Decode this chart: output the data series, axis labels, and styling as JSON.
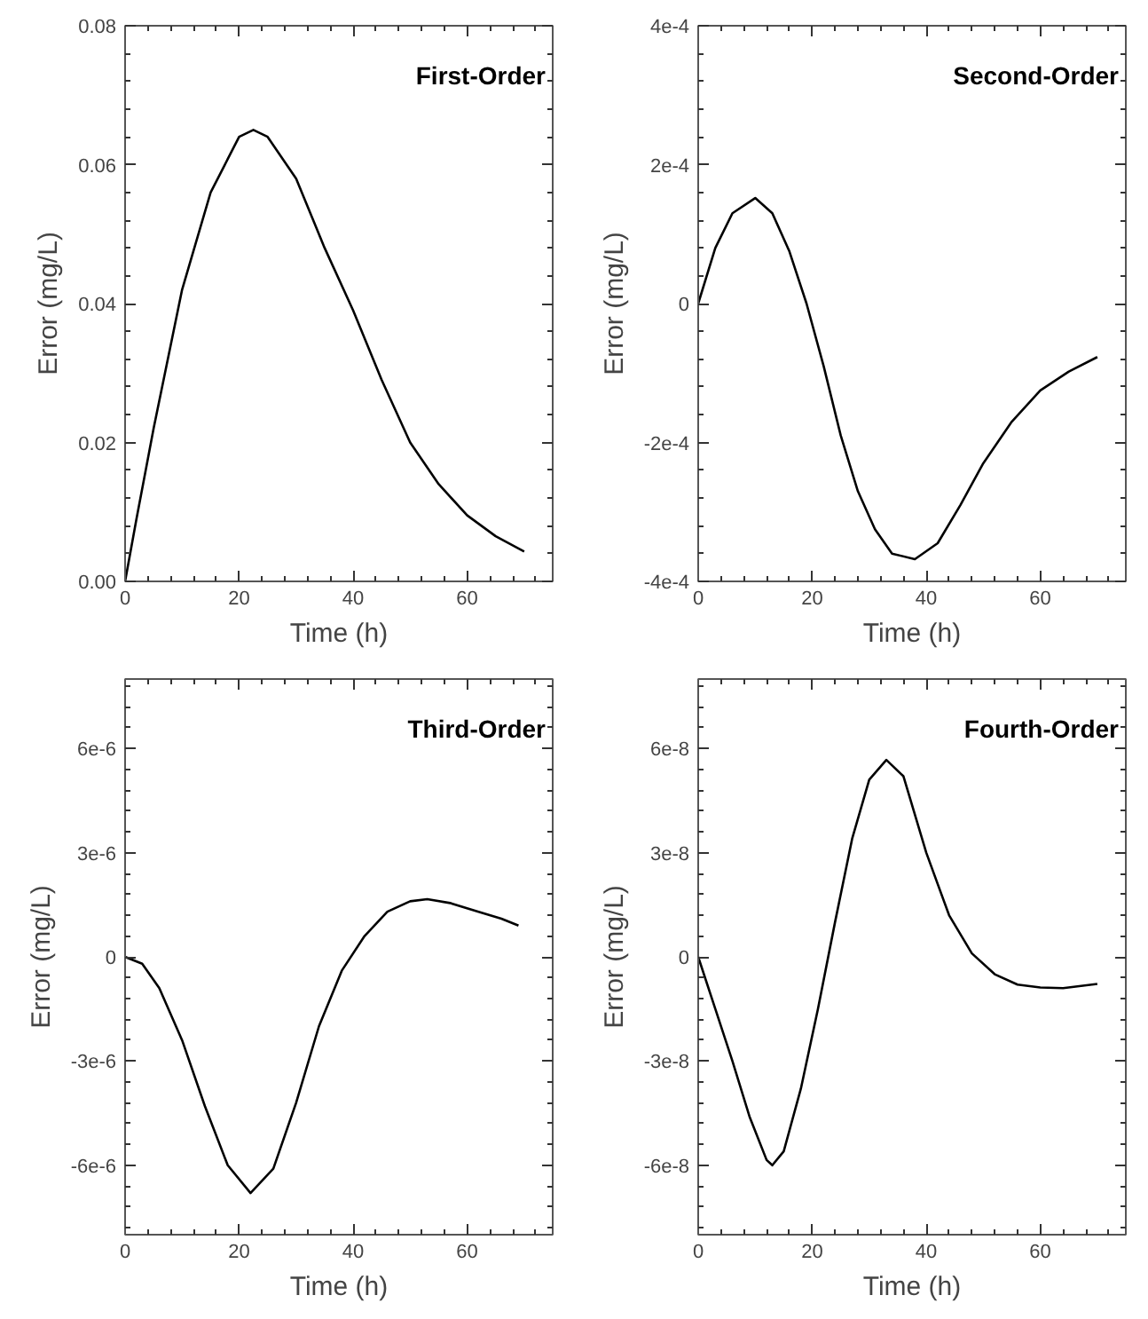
{
  "chart_data": [
    {
      "type": "line",
      "annotations": [
        "First-Order"
      ],
      "xlabel": "Time (h)",
      "ylabel": "Error (mg/L)",
      "xlim": [
        0,
        75
      ],
      "xticks": [
        0,
        20,
        40,
        60
      ],
      "ylim": [
        0,
        0.08
      ],
      "yticks": [
        {
          "value": 0,
          "label": "0.00"
        },
        0.02,
        0.04,
        0.06,
        0.08
      ],
      "grid": false,
      "marker": "none",
      "line_style": "solid",
      "series": [
        {
          "color": "#000000",
          "x": [
            0,
            2,
            5,
            10,
            15,
            20,
            22.5,
            25,
            30,
            35,
            40,
            45,
            50,
            55,
            60,
            65,
            70
          ],
          "values": [
            0,
            0.009,
            0.022,
            0.042,
            0.056,
            0.064,
            0.065,
            0.064,
            0.058,
            0.048,
            0.039,
            0.029,
            0.02,
            0.014,
            0.0095,
            0.0065,
            0.0043
          ]
        }
      ]
    },
    {
      "type": "line",
      "annotations": [
        "Second-Order"
      ],
      "xlabel": "Time (h)",
      "ylabel": "Error (mg/L)",
      "xlim": [
        0,
        75
      ],
      "xticks": [
        0,
        20,
        40,
        60
      ],
      "ylim": [
        -0.0004,
        0.0004
      ],
      "yticks": [
        {
          "value": -0.0004,
          "label": "-4e-4"
        },
        {
          "value": -0.0002,
          "label": "-2e-4"
        },
        {
          "value": 0,
          "label": "0"
        },
        {
          "value": 0.0002,
          "label": "2e-4"
        },
        {
          "value": 0.0004,
          "label": "4e-4"
        }
      ],
      "grid": false,
      "marker": "none",
      "line_style": "solid",
      "series": [
        {
          "color": "#000000",
          "x": [
            0,
            3,
            6,
            10,
            13,
            16,
            19,
            22,
            25,
            28,
            31,
            34,
            38,
            42,
            46,
            50,
            55,
            60,
            65,
            70
          ],
          "values": [
            0,
            8e-05,
            0.00013,
            0.000152,
            0.00013,
            7.5e-05,
            0,
            -9e-05,
            -0.00019,
            -0.00027,
            -0.000325,
            -0.00036,
            -0.000368,
            -0.000345,
            -0.00029,
            -0.00023,
            -0.00017,
            -0.000125,
            -9.8e-05,
            -7.7e-05
          ]
        }
      ]
    },
    {
      "type": "line",
      "annotations": [
        "Third-Order"
      ],
      "xlabel": "Time (h)",
      "ylabel": "Error (mg/L)",
      "xlim": [
        0,
        75
      ],
      "xticks": [
        0,
        20,
        40,
        60
      ],
      "ylim": [
        -8e-06,
        8e-06
      ],
      "yticks": [
        {
          "value": -6e-06,
          "label": "-6e-6"
        },
        {
          "value": -3e-06,
          "label": "-3e-6"
        },
        {
          "value": 0,
          "label": "0"
        },
        {
          "value": 3e-06,
          "label": "3e-6"
        },
        {
          "value": 6e-06,
          "label": "6e-6"
        }
      ],
      "grid": false,
      "marker": "none",
      "line_style": "solid",
      "series": [
        {
          "color": "#000000",
          "x": [
            0,
            3,
            6,
            10,
            14,
            18,
            22,
            26,
            30,
            34,
            38,
            42,
            46,
            50,
            53,
            57,
            62,
            66,
            69
          ],
          "values": [
            0,
            -2e-07,
            -9e-07,
            -2.4e-06,
            -4.3e-06,
            -6e-06,
            -6.8e-06,
            -6.1e-06,
            -4.2e-06,
            -2e-06,
            -4e-07,
            6e-07,
            1.3e-06,
            1.6e-06,
            1.66e-06,
            1.55e-06,
            1.3e-06,
            1.1e-06,
            9e-07
          ]
        }
      ]
    },
    {
      "type": "line",
      "annotations": [
        "Fourth-Order"
      ],
      "xlabel": "Time (h)",
      "ylabel": "Error (mg/L)",
      "xlim": [
        0,
        75
      ],
      "xticks": [
        0,
        20,
        40,
        60
      ],
      "ylim": [
        -8e-08,
        8e-08
      ],
      "yticks": [
        {
          "value": -6e-08,
          "label": "-6e-8"
        },
        {
          "value": -3e-08,
          "label": "-3e-8"
        },
        {
          "value": 0,
          "label": "0"
        },
        {
          "value": 3e-08,
          "label": "3e-8"
        },
        {
          "value": 6e-08,
          "label": "6e-8"
        }
      ],
      "grid": false,
      "marker": "none",
      "line_style": "solid",
      "series": [
        {
          "color": "#000000",
          "x": [
            0,
            3,
            6,
            9,
            12,
            13,
            15,
            18,
            21,
            24,
            27,
            30,
            33,
            36,
            40,
            44,
            48,
            52,
            56,
            60,
            64,
            70
          ],
          "values": [
            0,
            -1.5e-08,
            -3e-08,
            -4.6e-08,
            -5.85e-08,
            -6e-08,
            -5.6e-08,
            -3.8e-08,
            -1.5e-08,
            1e-08,
            3.4e-08,
            5.1e-08,
            5.67e-08,
            5.2e-08,
            3e-08,
            1.2e-08,
            1e-09,
            -5e-09,
            -8e-09,
            -8.8e-09,
            -9e-09,
            -7.8e-09
          ]
        }
      ]
    }
  ]
}
